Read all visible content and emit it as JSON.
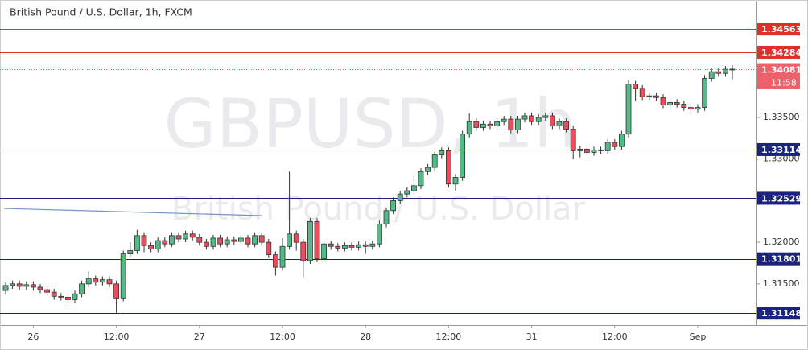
{
  "chart_data": {
    "type": "candlestick",
    "title": "British Pound / U.S. Dollar, 1h, FXCM",
    "watermark": "GBPUSD, 1h",
    "watermark_subtitle": "British Pound / U.S. Dollar",
    "up_color": "#53b987",
    "down_color": "#eb4d5c",
    "categories": [
      null,
      null,
      null,
      null,
      "26",
      null,
      null,
      null,
      null,
      null,
      null,
      null,
      null,
      null,
      null,
      null,
      "12:00",
      null,
      null,
      null,
      null,
      null,
      null,
      null,
      null,
      null,
      null,
      null,
      "27",
      null,
      null,
      null,
      null,
      null,
      null,
      null,
      null,
      null,
      null,
      null,
      "12:00",
      null,
      null,
      null,
      null,
      null,
      null,
      null,
      null,
      null,
      null,
      null,
      "28",
      null,
      null,
      null,
      null,
      null,
      null,
      null,
      null,
      null,
      null,
      null,
      "12:00",
      null,
      null,
      null,
      null,
      null,
      null,
      null,
      null,
      null,
      null,
      null,
      "31",
      null,
      null,
      null,
      null,
      null,
      null,
      null,
      null,
      null,
      null,
      null,
      "12:00",
      null,
      null,
      null,
      null,
      null,
      null,
      null,
      null,
      null,
      null,
      null,
      "Sep",
      null,
      null,
      null,
      null,
      null
    ],
    "open": [
      1.3142,
      1.3148,
      1.315,
      1.3147,
      1.3149,
      1.3146,
      1.3143,
      1.314,
      1.3135,
      1.3134,
      1.3131,
      1.3138,
      1.315,
      1.3156,
      1.3152,
      1.3155,
      1.315,
      1.3133,
      1.3186,
      1.319,
      1.3208,
      1.3196,
      1.3192,
      1.3202,
      1.3198,
      1.3208,
      1.3204,
      1.321,
      1.3206,
      1.32,
      1.3195,
      1.3205,
      1.3198,
      1.3203,
      1.3201,
      1.3205,
      1.3198,
      1.3208,
      1.32,
      1.3185,
      1.317,
      1.3195,
      1.321,
      1.32,
      1.3178,
      1.3225,
      1.318,
      1.3198,
      1.3195,
      1.3193,
      1.3196,
      1.3194,
      1.3197,
      1.3195,
      1.3198,
      1.3222,
      1.3238,
      1.325,
      1.3258,
      1.3262,
      1.3268,
      1.3285,
      1.329,
      1.3305,
      1.331,
      1.327,
      1.3278,
      1.333,
      1.3345,
      1.3338,
      1.3342,
      1.334,
      1.3345,
      1.3348,
      1.3335,
      1.3348,
      1.3352,
      1.3345,
      1.335,
      1.3352,
      1.334,
      1.3345,
      1.3336,
      1.331,
      1.3312,
      1.3308,
      1.3311,
      1.331,
      1.332,
      1.3315,
      1.333,
      1.339,
      1.3385,
      1.3375,
      1.3376,
      1.3374,
      1.3365,
      1.3368,
      1.3366,
      1.3362,
      1.336,
      1.3362,
      1.3397,
      1.3405,
      1.3403,
      1.3408
    ],
    "high": [
      1.3152,
      1.3154,
      1.3154,
      1.3153,
      1.3153,
      1.315,
      1.3147,
      1.3144,
      1.3139,
      1.3138,
      1.3142,
      1.3154,
      1.3165,
      1.316,
      1.3159,
      1.3159,
      1.3154,
      1.319,
      1.32,
      1.3215,
      1.3212,
      1.32,
      1.3206,
      1.3206,
      1.3212,
      1.3212,
      1.3214,
      1.3214,
      1.321,
      1.3204,
      1.3209,
      1.3209,
      1.3207,
      1.3207,
      1.3209,
      1.3209,
      1.3212,
      1.3212,
      1.3204,
      1.3189,
      1.3205,
      1.3285,
      1.3214,
      1.3204,
      1.3229,
      1.3229,
      1.3202,
      1.3202,
      1.3199,
      1.32,
      1.32,
      1.3201,
      1.3201,
      1.3202,
      1.3226,
      1.3242,
      1.3254,
      1.3262,
      1.3266,
      1.328,
      1.3289,
      1.3294,
      1.3309,
      1.3314,
      1.3314,
      1.3282,
      1.3334,
      1.3355,
      1.3349,
      1.3346,
      1.3346,
      1.3349,
      1.3352,
      1.3352,
      1.3352,
      1.3356,
      1.3356,
      1.3354,
      1.3356,
      1.3356,
      1.3349,
      1.3349,
      1.334,
      1.3316,
      1.3316,
      1.3315,
      1.3315,
      1.3324,
      1.3324,
      1.3334,
      1.3395,
      1.3394,
      1.3389,
      1.338,
      1.338,
      1.3378,
      1.3372,
      1.3372,
      1.337,
      1.3366,
      1.3366,
      1.3401,
      1.3409,
      1.3409,
      1.3412,
      1.3413
    ],
    "low": [
      1.3138,
      1.3144,
      1.3143,
      1.3143,
      1.3142,
      1.3139,
      1.3136,
      1.3131,
      1.313,
      1.3127,
      1.3127,
      1.3134,
      1.3146,
      1.3148,
      1.3148,
      1.3146,
      1.3115,
      1.3129,
      1.3182,
      1.3186,
      1.3188,
      1.3188,
      1.3188,
      1.3194,
      1.3194,
      1.32,
      1.32,
      1.3202,
      1.3196,
      1.3191,
      1.3191,
      1.3194,
      1.3194,
      1.3197,
      1.3197,
      1.3194,
      1.3194,
      1.3196,
      1.3181,
      1.316,
      1.3166,
      1.3191,
      1.319,
      1.3158,
      1.3174,
      1.3176,
      1.3176,
      1.3191,
      1.3189,
      1.3189,
      1.319,
      1.319,
      1.3186,
      1.3191,
      1.3194,
      1.3218,
      1.3234,
      1.3246,
      1.3254,
      1.3258,
      1.3264,
      1.3281,
      1.3286,
      1.3301,
      1.3266,
      1.3262,
      1.3274,
      1.3326,
      1.3334,
      1.3334,
      1.3336,
      1.3336,
      1.3341,
      1.3331,
      1.3331,
      1.3344,
      1.3341,
      1.3341,
      1.3346,
      1.3336,
      1.3336,
      1.3332,
      1.33,
      1.3302,
      1.3304,
      1.3304,
      1.3306,
      1.3306,
      1.3311,
      1.3311,
      1.3326,
      1.337,
      1.3371,
      1.3371,
      1.337,
      1.3361,
      1.3361,
      1.3362,
      1.3358,
      1.3356,
      1.3356,
      1.3358,
      1.3393,
      1.3399,
      1.3399,
      1.3396
    ],
    "close": [
      1.3148,
      1.315,
      1.3147,
      1.3149,
      1.3146,
      1.3143,
      1.314,
      1.3135,
      1.3134,
      1.3131,
      1.3138,
      1.315,
      1.3156,
      1.3152,
      1.3155,
      1.315,
      1.3133,
      1.3186,
      1.319,
      1.3208,
      1.3196,
      1.3192,
      1.3202,
      1.3198,
      1.3208,
      1.3204,
      1.321,
      1.3206,
      1.32,
      1.3195,
      1.3205,
      1.3198,
      1.3203,
      1.3201,
      1.3205,
      1.3198,
      1.3208,
      1.32,
      1.3185,
      1.317,
      1.3195,
      1.321,
      1.32,
      1.3178,
      1.3225,
      1.318,
      1.3198,
      1.3195,
      1.3193,
      1.3196,
      1.3194,
      1.3197,
      1.3195,
      1.3198,
      1.3222,
      1.3238,
      1.325,
      1.3258,
      1.3262,
      1.3268,
      1.3285,
      1.329,
      1.3305,
      1.331,
      1.327,
      1.3278,
      1.333,
      1.3345,
      1.3338,
      1.3342,
      1.334,
      1.3345,
      1.3348,
      1.3335,
      1.3348,
      1.3352,
      1.3345,
      1.335,
      1.3352,
      1.334,
      1.3345,
      1.3336,
      1.331,
      1.3312,
      1.3308,
      1.3311,
      1.331,
      1.332,
      1.3315,
      1.333,
      1.339,
      1.3385,
      1.3375,
      1.3376,
      1.3374,
      1.3365,
      1.3368,
      1.3366,
      1.3362,
      1.336,
      1.3362,
      1.3397,
      1.3405,
      1.3403,
      1.3408,
      1.34081
    ],
    "ylim": [
      1.31005,
      1.34864
    ],
    "yticks": [
      {
        "value": 1.315,
        "label": "1.31500"
      },
      {
        "value": 1.32,
        "label": "1.32000"
      },
      {
        "value": 1.33,
        "label": "1.33000"
      },
      {
        "value": 1.335,
        "label": "1.33500"
      }
    ],
    "levels": [
      {
        "value": 1.34563,
        "color": "#e0302a"
      },
      {
        "value": 1.34284,
        "color": "#e0302a"
      },
      {
        "value": 1.33114,
        "color": "#1a237e"
      },
      {
        "value": 1.32529,
        "color": "#1a237e"
      },
      {
        "value": 1.31801,
        "color": "#1a237e"
      },
      {
        "value": 1.31148,
        "color": "#1a237e"
      }
    ],
    "last_price": {
      "value": 1.34081,
      "countdown": "11:58",
      "color": "#f0606a"
    },
    "trendline": {
      "x": [
        0,
        37
      ],
      "y": [
        1.32407,
        1.3232
      ],
      "color": "#6f95c8"
    }
  }
}
